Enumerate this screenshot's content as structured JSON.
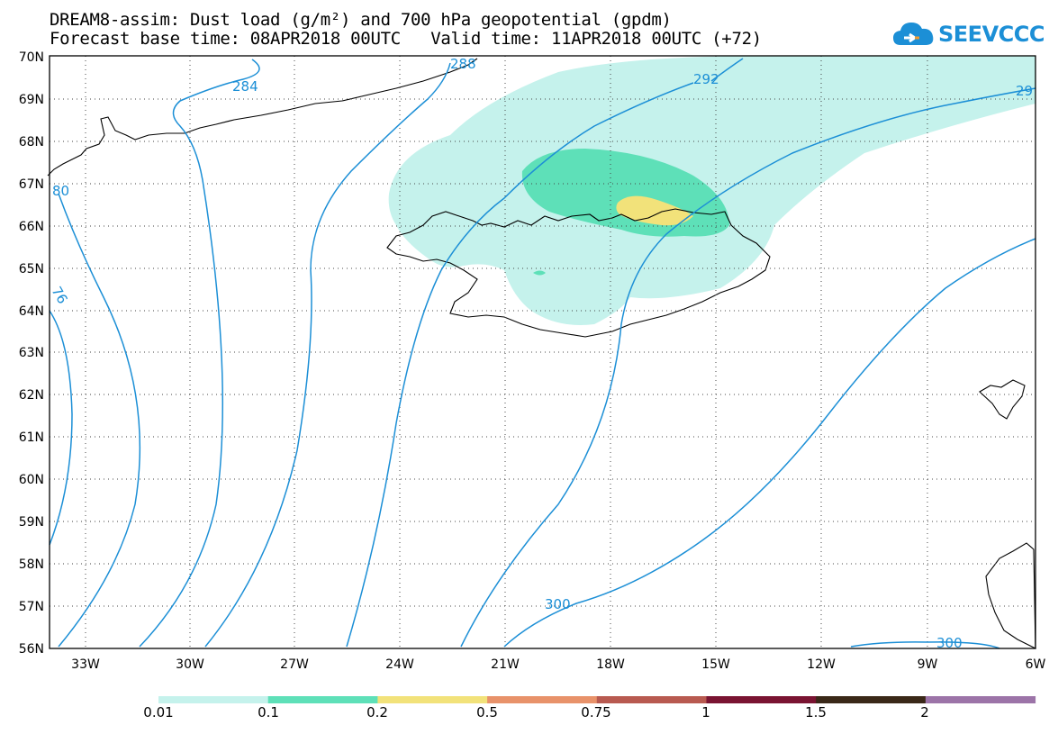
{
  "header": {
    "line1": "DREAM8-assim: Dust load (g/m²) and 700 hPa geopotential (gpdm)",
    "line2": "Forecast base time: 08APR2018 00UTC   Valid time: 11APR2018 00UTC (+72)"
  },
  "logo": {
    "text": "SEEVCCC"
  },
  "map": {
    "lat_labels": [
      "70N",
      "69N",
      "68N",
      "67N",
      "66N",
      "65N",
      "64N",
      "63N",
      "62N",
      "61N",
      "60N",
      "59N",
      "58N",
      "57N",
      "56N"
    ],
    "lon_labels": [
      "33W",
      "30W",
      "27W",
      "24W",
      "21W",
      "18W",
      "15W",
      "12W",
      "9W",
      "6W"
    ],
    "contour_labels": [
      "284",
      "288",
      "292",
      "29",
      "300",
      "300",
      "76",
      "80"
    ],
    "contour_color": "#1c8fd6"
  },
  "colorbar": {
    "labels": [
      "0.01",
      "0.1",
      "0.2",
      "0.5",
      "0.75",
      "1",
      "1.5",
      "2"
    ],
    "colors": [
      "#c5f2ec",
      "#5ee0b8",
      "#f2e27a",
      "#e8926a",
      "#b85a50",
      "#7a1432",
      "#3a2818",
      "#9c74a8"
    ]
  }
}
